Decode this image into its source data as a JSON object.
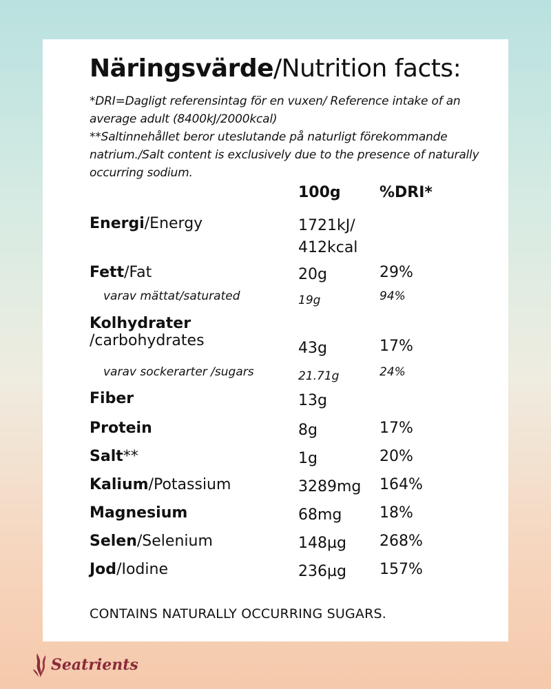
{
  "title": {
    "bold": "Näringsvärde",
    "rest": "/Nutrition facts:"
  },
  "notes": [
    "*DRI=Dagligt referensintag för en vuxen/ Reference intake of an average adult (8400kJ/2000kcal)",
    "**Saltinnehållet beror uteslutande på naturligt förekommande natrium./Salt content is exclusively due to the presence of naturally occurring sodium."
  ],
  "columns": {
    "amount": "100g",
    "dri": "%DRI*"
  },
  "rows": [
    {
      "bold": "Energi",
      "rest": "/Energy",
      "amount_line1": "1721kJ/",
      "amount_line2": "412kcal",
      "dri": ""
    },
    {
      "bold": "Fett",
      "rest": "/Fat",
      "amount": "20g",
      "dri": "29%"
    },
    {
      "label": "varav mättat/saturated",
      "amount": "19g",
      "dri": "94%"
    },
    {
      "bold": "Kolhydrater",
      "rest": "/carbohydrates",
      "amount": "43g",
      "dri": "17%"
    },
    {
      "label": "varav sockerarter /sugars",
      "amount": "21.71g",
      "dri": "24%"
    },
    {
      "bold": "Fiber",
      "rest": "",
      "amount": "13g",
      "dri": ""
    },
    {
      "bold": "Protein",
      "rest": "",
      "amount": "8g",
      "dri": "17%"
    },
    {
      "bold": "Salt",
      "rest": "**",
      "amount": "1g",
      "dri": "20%"
    },
    {
      "bold": "Kalium",
      "rest": "/Potassium",
      "amount": "3289mg",
      "dri": "164%"
    },
    {
      "bold": "Magnesium",
      "rest": "",
      "amount": "68mg",
      "dri": "18%"
    },
    {
      "bold": "Selen",
      "rest": "/Selenium",
      "amount": "148µg",
      "dri": "268%"
    },
    {
      "bold": "Jod",
      "rest": "/Iodine",
      "amount": "236µg",
      "dri": "157%"
    }
  ],
  "footer_note": "CONTAINS NATURALLY OCCURRING SUGARS.",
  "brand": {
    "name": "Seatrients",
    "color": "#8a2b3a"
  }
}
